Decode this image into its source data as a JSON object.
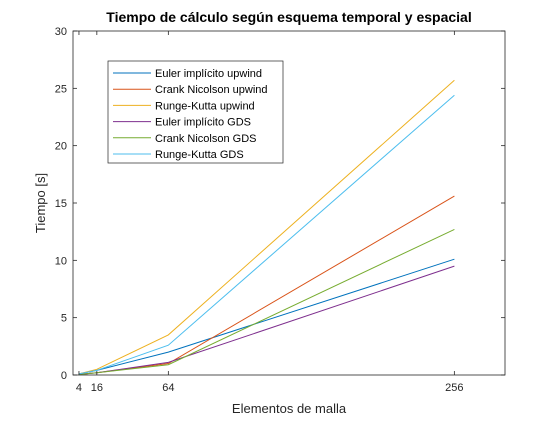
{
  "chart_data": {
    "type": "line",
    "title": "Tiempo de cálculo según esquema temporal y espacial",
    "xlabel": "Elementos de malla",
    "ylabel": "Tiempo [s]",
    "xlim": [
      0,
      290
    ],
    "ylim": [
      0,
      30
    ],
    "xticks": [
      4,
      16,
      64,
      256
    ],
    "xtick_labels": [
      "4",
      "16",
      "64",
      "256"
    ],
    "yticks": [
      0,
      5,
      10,
      15,
      20,
      25,
      30
    ],
    "ytick_labels": [
      "0",
      "5",
      "10",
      "15",
      "20",
      "25",
      "30"
    ],
    "grid": false,
    "legend_position": "upper-left",
    "x": [
      4,
      16,
      64,
      256
    ],
    "series": [
      {
        "name": "Euler implícito upwind",
        "color": "#0072BD",
        "values": [
          0.1,
          0.4,
          2.0,
          10.1
        ]
      },
      {
        "name": "Crank Nicolson upwind",
        "color": "#D95319",
        "values": [
          0.05,
          0.2,
          1.0,
          15.6
        ]
      },
      {
        "name": "Runge-Kutta upwind",
        "color": "#EDB120",
        "values": [
          0.1,
          0.5,
          3.5,
          25.7
        ]
      },
      {
        "name": "Euler implícito GDS",
        "color": "#7E2F8E",
        "values": [
          0.05,
          0.2,
          1.1,
          9.5
        ]
      },
      {
        "name": "Crank Nicolson GDS",
        "color": "#77AC30",
        "values": [
          0.04,
          0.2,
          0.9,
          12.7
        ]
      },
      {
        "name": "Runge-Kutta GDS",
        "color": "#4DBEEE",
        "values": [
          0.1,
          0.4,
          2.6,
          24.4
        ]
      }
    ]
  }
}
